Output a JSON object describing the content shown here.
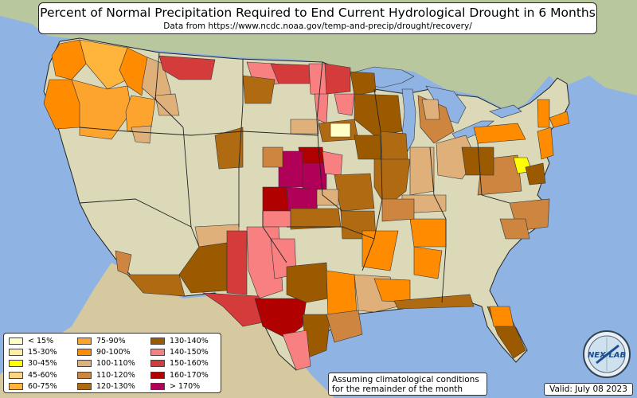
{
  "title": "Percent of Normal Precipitation Required to End Current Hydrological Drought in 6 Months",
  "subtitle": "Data from https://www.ncdc.noaa.gov/temp-and-precip/drought/recovery/",
  "legend": [
    {
      "label": "< 15%",
      "color": "#ffffc8"
    },
    {
      "label": "15-30%",
      "color": "#ffeea0"
    },
    {
      "label": "30-45%",
      "color": "#ffff00"
    },
    {
      "label": "45-60%",
      "color": "#ffd480"
    },
    {
      "label": "60-75%",
      "color": "#ffb43c"
    },
    {
      "label": "75-90%",
      "color": "#fda42f"
    },
    {
      "label": "90-100%",
      "color": "#ff8c00"
    },
    {
      "label": "100-110%",
      "color": "#e0b07a"
    },
    {
      "label": "110-120%",
      "color": "#cd853f"
    },
    {
      "label": "120-130%",
      "color": "#b06a12"
    },
    {
      "label": "130-140%",
      "color": "#9c5a00"
    },
    {
      "label": "140-150%",
      "color": "#f88080"
    },
    {
      "label": "150-160%",
      "color": "#d43b3b"
    },
    {
      "label": "160-170%",
      "color": "#b00000"
    },
    {
      "label": "> 170%",
      "color": "#b00058"
    }
  ],
  "note": "Assuming climatological conditions for the remainder of the month",
  "valid": "Valid: July 08 2023",
  "logo_text": "NEX LAB",
  "colors": {
    "ocean": "#8fb3e3",
    "land": "#d9dcc0",
    "mountains": "#c9b894",
    "canada": "#b8c9a0"
  }
}
